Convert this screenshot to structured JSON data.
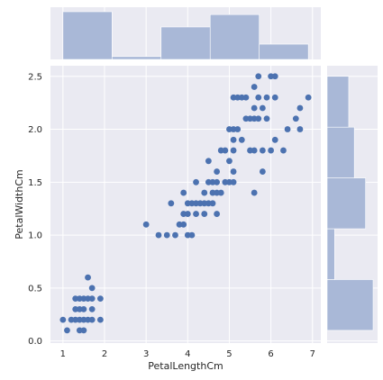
{
  "chart_data": {
    "type": "scatter",
    "kind": "jointplot",
    "title": "",
    "xlabel": "PetalLengthCm",
    "ylabel": "PetalWidthCm",
    "xlim": [
      0.7,
      7.2
    ],
    "ylim": [
      -0.02,
      2.6
    ],
    "xticks": [
      1,
      2,
      3,
      4,
      5,
      6,
      7
    ],
    "yticks": [
      0.0,
      0.5,
      1.0,
      1.5,
      2.0,
      2.5
    ],
    "grid": true,
    "background": "#eaeaf2",
    "point_color": "#4c72b0",
    "hist_color": "#a9b8d7",
    "points": [
      [
        1.0,
        0.2
      ],
      [
        1.1,
        0.1
      ],
      [
        1.2,
        0.2
      ],
      [
        1.3,
        0.2
      ],
      [
        1.3,
        0.3
      ],
      [
        1.3,
        0.4
      ],
      [
        1.4,
        0.1
      ],
      [
        1.4,
        0.2
      ],
      [
        1.4,
        0.3
      ],
      [
        1.4,
        0.4
      ],
      [
        1.5,
        0.1
      ],
      [
        1.5,
        0.2
      ],
      [
        1.5,
        0.3
      ],
      [
        1.5,
        0.4
      ],
      [
        1.6,
        0.2
      ],
      [
        1.6,
        0.4
      ],
      [
        1.6,
        0.6
      ],
      [
        1.7,
        0.2
      ],
      [
        1.7,
        0.3
      ],
      [
        1.7,
        0.4
      ],
      [
        1.7,
        0.5
      ],
      [
        1.9,
        0.2
      ],
      [
        1.9,
        0.4
      ],
      [
        3.0,
        1.1
      ],
      [
        3.3,
        1.0
      ],
      [
        3.5,
        1.0
      ],
      [
        3.6,
        1.3
      ],
      [
        3.7,
        1.0
      ],
      [
        3.8,
        1.1
      ],
      [
        3.9,
        1.1
      ],
      [
        3.9,
        1.2
      ],
      [
        3.9,
        1.4
      ],
      [
        4.0,
        1.0
      ],
      [
        4.0,
        1.2
      ],
      [
        4.0,
        1.3
      ],
      [
        4.1,
        1.0
      ],
      [
        4.1,
        1.3
      ],
      [
        4.2,
        1.2
      ],
      [
        4.2,
        1.3
      ],
      [
        4.2,
        1.5
      ],
      [
        4.3,
        1.3
      ],
      [
        4.4,
        1.2
      ],
      [
        4.4,
        1.3
      ],
      [
        4.4,
        1.4
      ],
      [
        4.5,
        1.3
      ],
      [
        4.5,
        1.5
      ],
      [
        4.5,
        1.7
      ],
      [
        4.6,
        1.3
      ],
      [
        4.6,
        1.4
      ],
      [
        4.6,
        1.5
      ],
      [
        4.7,
        1.2
      ],
      [
        4.7,
        1.4
      ],
      [
        4.7,
        1.5
      ],
      [
        4.7,
        1.6
      ],
      [
        4.8,
        1.4
      ],
      [
        4.8,
        1.8
      ],
      [
        4.9,
        1.5
      ],
      [
        4.9,
        1.8
      ],
      [
        5.0,
        1.5
      ],
      [
        5.0,
        1.7
      ],
      [
        5.0,
        2.0
      ],
      [
        5.1,
        1.5
      ],
      [
        5.1,
        1.6
      ],
      [
        5.1,
        1.8
      ],
      [
        5.1,
        1.9
      ],
      [
        5.1,
        2.0
      ],
      [
        5.1,
        2.3
      ],
      [
        5.2,
        2.0
      ],
      [
        5.2,
        2.3
      ],
      [
        5.3,
        1.9
      ],
      [
        5.3,
        2.3
      ],
      [
        5.4,
        2.1
      ],
      [
        5.4,
        2.3
      ],
      [
        5.5,
        1.8
      ],
      [
        5.5,
        2.1
      ],
      [
        5.6,
        1.4
      ],
      [
        5.6,
        1.8
      ],
      [
        5.6,
        2.1
      ],
      [
        5.6,
        2.2
      ],
      [
        5.6,
        2.4
      ],
      [
        5.7,
        2.1
      ],
      [
        5.7,
        2.3
      ],
      [
        5.7,
        2.5
      ],
      [
        5.8,
        1.6
      ],
      [
        5.8,
        1.8
      ],
      [
        5.8,
        2.2
      ],
      [
        5.9,
        2.1
      ],
      [
        5.9,
        2.3
      ],
      [
        6.0,
        1.8
      ],
      [
        6.0,
        2.5
      ],
      [
        6.1,
        1.9
      ],
      [
        6.1,
        2.3
      ],
      [
        6.1,
        2.5
      ],
      [
        6.3,
        1.8
      ],
      [
        6.4,
        2.0
      ],
      [
        6.6,
        2.1
      ],
      [
        6.7,
        2.0
      ],
      [
        6.7,
        2.2
      ],
      [
        6.9,
        2.3
      ]
    ],
    "x_histogram": {
      "bin_edges": [
        1.0,
        2.18,
        3.36,
        4.54,
        5.72,
        6.9
      ],
      "counts": [
        50,
        3,
        34,
        47,
        16
      ]
    },
    "y_histogram": {
      "bin_edges": [
        0.1,
        0.58,
        1.06,
        1.54,
        2.02,
        2.5
      ],
      "counts": [
        49,
        8,
        41,
        29,
        23
      ]
    }
  }
}
